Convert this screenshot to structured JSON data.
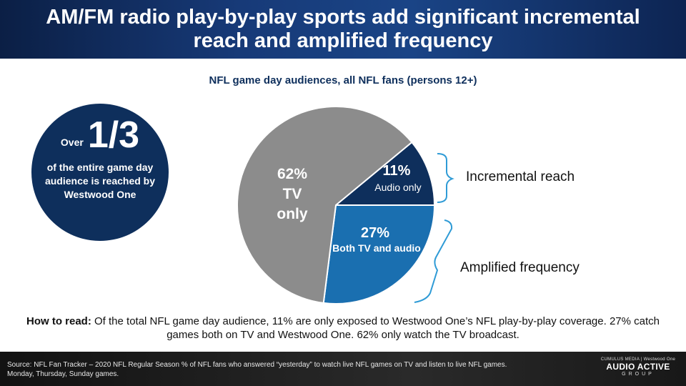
{
  "header": {
    "title": "AM/FM radio play-by-play sports add significant incremental reach and amplified frequency"
  },
  "callout": {
    "prefix": "Over",
    "big": "1/3",
    "text": "of the entire game day audience is reached by Westwood One"
  },
  "chart_data": {
    "type": "pie",
    "title": "NFL game day audiences, all NFL fans (persons 12+)",
    "slices": [
      {
        "label": "Audio only",
        "value": 11,
        "value_label": "11%",
        "color": "#0e2f5c"
      },
      {
        "label": "Both TV and audio",
        "value": 27,
        "value_label": "27%",
        "color": "#1a6fb0"
      },
      {
        "label": "TV only",
        "value": 62,
        "value_label": "62%",
        "color": "#8c8c8c"
      }
    ],
    "slice_texts": {
      "audio": "Audio only",
      "both": "Both TV and audio",
      "tv_line1": "TV",
      "tv_line2": "only"
    },
    "annotations": {
      "incremental": "Incremental reach",
      "amplified": "Amplified frequency"
    }
  },
  "footnote": {
    "label": "How to read:",
    "text": " Of the total NFL game day audience, 11% are only exposed to Westwood One’s NFL play-by-play coverage. 27% catch games both on TV and Westwood One. 62% only watch the TV broadcast."
  },
  "footer": {
    "source": "Source: NFL Fan Tracker – 2020 NFL Regular Season % of NFL fans who answered “yesterday” to watch live NFL games on TV and listen to live NFL games. Monday, Thursday, Sunday games.",
    "brand_small": "CUMULUS MEDIA | Westwood One",
    "brand_name": "AUDIO ACTIVE",
    "brand_group": "GROUP"
  },
  "colors": {
    "navy": "#0e2f5c",
    "blue": "#1a6fb0",
    "gray": "#8c8c8c",
    "bracket": "#2f9bd6"
  }
}
